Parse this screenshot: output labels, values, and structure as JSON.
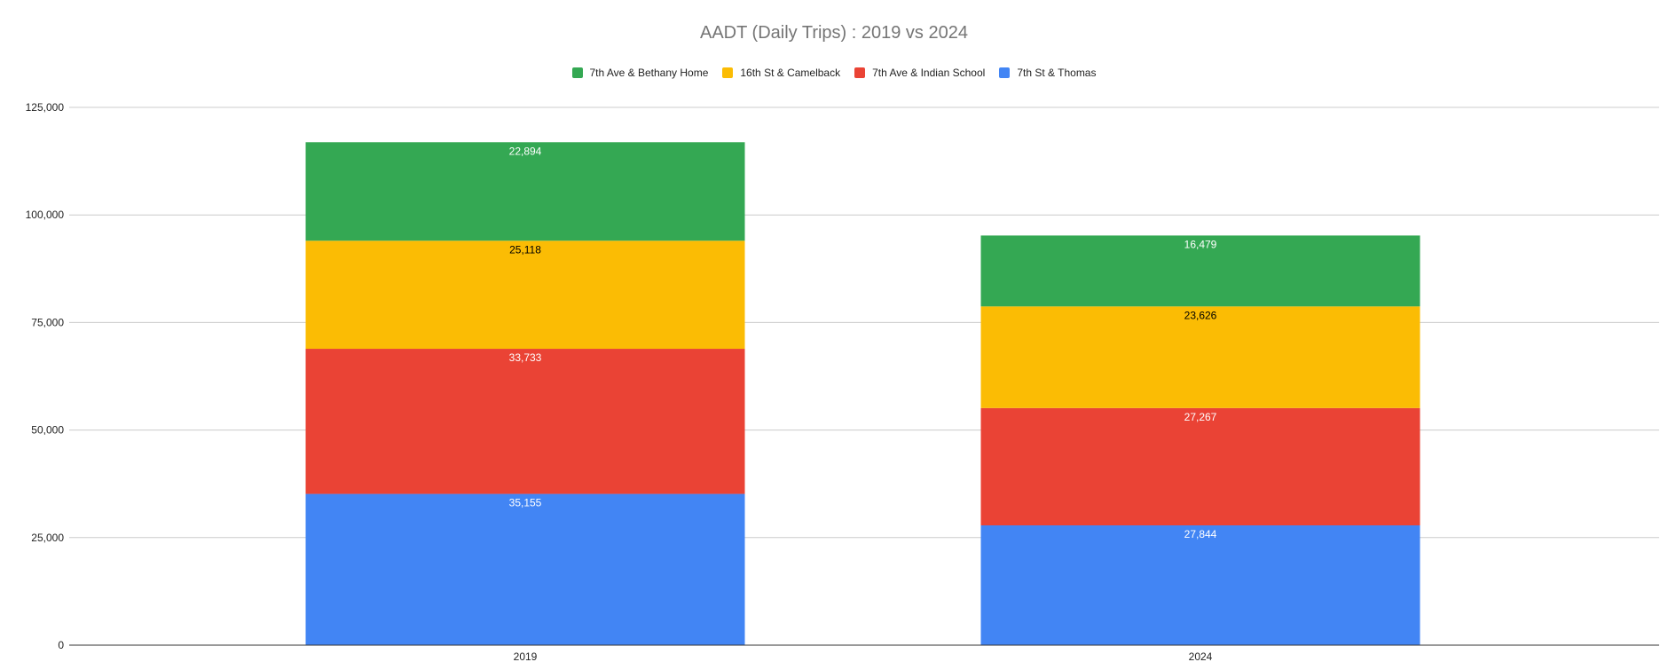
{
  "chart_data": {
    "type": "bar",
    "stacked": true,
    "title": "AADT (Daily Trips) : 2019 vs 2024",
    "xlabel": "",
    "ylabel": "",
    "categories": [
      "2019",
      "2024"
    ],
    "ylim": [
      0,
      125000
    ],
    "yticks": [
      0,
      25000,
      50000,
      75000,
      100000,
      125000
    ],
    "ytick_labels": [
      "0",
      "25,000",
      "50,000",
      "75,000",
      "100,000",
      "125,000"
    ],
    "grid": true,
    "legend_position": "top-center",
    "legend_order": [
      "7th Ave & Bethany Home",
      "16th St & Camelback",
      "7th Ave & Indian School",
      "7th St & Thomas"
    ],
    "series": [
      {
        "name": "7th St & Thomas",
        "color": "#4285F4",
        "label_color": "#ffffff",
        "values": [
          35155,
          27844
        ],
        "labels": [
          "35,155",
          "27,844"
        ]
      },
      {
        "name": "7th Ave & Indian School",
        "color": "#EA4335",
        "label_color": "#ffffff",
        "values": [
          33733,
          27267
        ],
        "labels": [
          "33,733",
          "27,267"
        ]
      },
      {
        "name": "16th St & Camelback",
        "color": "#FBBC04",
        "label_color": "#000000",
        "values": [
          25118,
          23626
        ],
        "labels": [
          "25,118",
          "23,626"
        ]
      },
      {
        "name": "7th Ave & Bethany Home",
        "color": "#34A853",
        "label_color": "#ffffff",
        "values": [
          22894,
          16479
        ],
        "labels": [
          "22,894",
          "16,479"
        ]
      }
    ]
  }
}
